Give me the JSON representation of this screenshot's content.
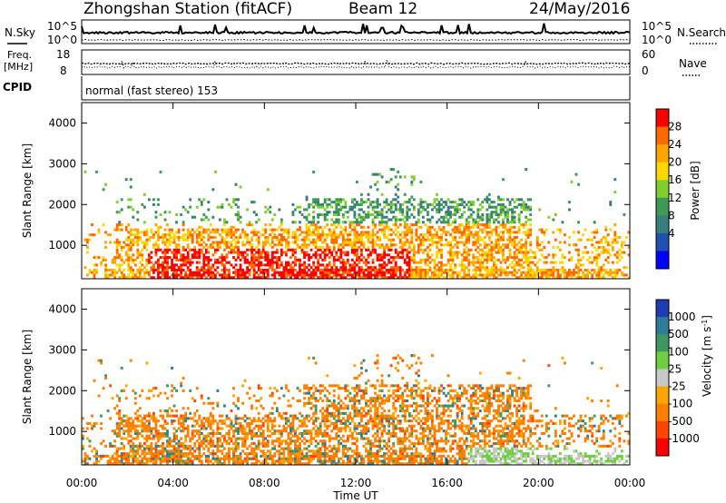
{
  "header": {
    "station": "Zhongshan Station (fitACF)",
    "beam": "Beam 12",
    "date": "24/May/2016"
  },
  "summary_panels": {
    "nsky_label": "N.Sky",
    "nsearch_label": "N.Search",
    "nsky_ticks": [
      "10^5",
      "10^0"
    ],
    "nsearch_ticks": [
      "10^5",
      "10^0"
    ],
    "freq_label_line1": "Freq.",
    "freq_label_line2": "[MHz]",
    "freq_ticks": [
      "18",
      "8"
    ],
    "nave_label": "Nave",
    "nave_ticks": [
      "60",
      "0"
    ],
    "cpid_label": "CPID",
    "cpid_value": "normal (fast stereo) 153"
  },
  "chart_data": [
    {
      "type": "heatmap",
      "name": "power",
      "ylabel": "Slant Range [km]",
      "y_ticks": [
        "4000",
        "3000",
        "2000",
        "1000"
      ],
      "ylim": [
        180,
        4500
      ],
      "colorbar_label": "Power [dB]",
      "colorbar_ticks": [
        "28",
        "24",
        "20",
        "16",
        "12",
        "8",
        "4"
      ],
      "colorbar_colors": [
        "#ff0000",
        "#ff6a00",
        "#ffa500",
        "#ffd700",
        "#7fcf2f",
        "#3c9a55",
        "#3a7d7d",
        "#2050b0",
        "#0000ff"
      ]
    },
    {
      "type": "heatmap",
      "name": "velocity",
      "ylabel": "Slant Range [km]",
      "y_ticks": [
        "4000",
        "3000",
        "2000",
        "1000"
      ],
      "ylim": [
        180,
        4500
      ],
      "colorbar_label": "Velocity [m s",
      "colorbar_label_sup": "-1",
      "colorbar_label_end": "]",
      "colorbar_ticks": [
        "1000",
        "500",
        "100",
        "25",
        "-25",
        "-100",
        "-500",
        "-1000"
      ],
      "colorbar_colors": [
        "#1e3cb4",
        "#2d7d9a",
        "#3d9960",
        "#6fcf40",
        "#c8c8c8",
        "#ffa500",
        "#ff7f00",
        "#ff4500",
        "#ff0000"
      ]
    }
  ],
  "x_axis": {
    "label": "Time UT",
    "ticks": [
      "00:00",
      "04:00",
      "08:00",
      "12:00",
      "16:00",
      "20:00",
      "00:00"
    ]
  }
}
